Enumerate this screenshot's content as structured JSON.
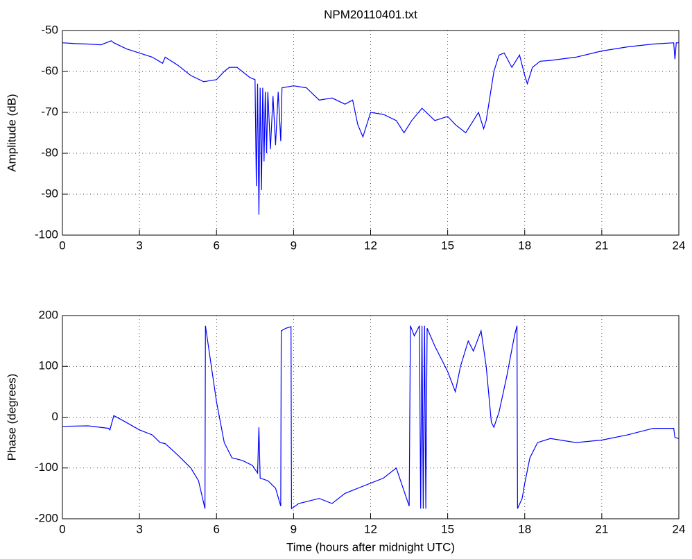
{
  "chart_data": [
    {
      "type": "line",
      "title": "NPM20110401.txt",
      "ylabel": "Amplitude (dB)",
      "color": "#0000ff",
      "grid": true,
      "x": [
        0,
        0.5,
        1,
        1.5,
        1.9,
        2,
        2.5,
        3,
        3.5,
        3.9,
        4,
        4.5,
        5,
        5.5,
        6,
        6.3,
        6.5,
        6.8,
        7,
        7.3,
        7.5,
        7.55,
        7.6,
        7.65,
        7.7,
        7.75,
        7.8,
        7.85,
        7.9,
        7.95,
        8,
        8.1,
        8.2,
        8.3,
        8.4,
        8.5,
        8.55,
        9,
        9.5,
        10,
        10.5,
        11,
        11.3,
        11.5,
        11.7,
        12,
        12.5,
        13,
        13.3,
        13.6,
        14,
        14.5,
        15,
        15.3,
        15.7,
        16,
        16.2,
        16.4,
        16.5,
        16.8,
        17,
        17.2,
        17.5,
        17.8,
        18,
        18.1,
        18.3,
        18.6,
        19,
        20,
        21,
        22,
        23,
        23.8,
        23.85,
        23.9,
        24
      ],
      "values": [
        -53,
        -53.2,
        -53.3,
        -53.5,
        -52.5,
        -53,
        -54.5,
        -55.5,
        -56.5,
        -58,
        -56.5,
        -58.5,
        -61,
        -62.5,
        -62,
        -60,
        -59,
        -59,
        -60,
        -61.5,
        -62,
        -88,
        -63,
        -95,
        -64,
        -89,
        -64,
        -82,
        -65,
        -80,
        -65,
        -79,
        -66,
        -78,
        -65,
        -77,
        -64,
        -63.5,
        -64,
        -67,
        -66.5,
        -68,
        -67,
        -73,
        -76,
        -70,
        -70.5,
        -72,
        -75,
        -72,
        -69,
        -72,
        -71,
        -73,
        -75,
        -72,
        -70,
        -74,
        -72,
        -60,
        -56,
        -55.5,
        -59,
        -56,
        -61,
        -63,
        -59,
        -57.5,
        -57.3,
        -56.5,
        -55,
        -54,
        -53.3,
        -53,
        -57,
        -53,
        -53
      ],
      "xlim": [
        0,
        24
      ],
      "xticks": [
        0,
        3,
        6,
        9,
        12,
        15,
        18,
        21,
        24
      ],
      "ylim": [
        -100,
        -50
      ],
      "yticks": [
        -100,
        -90,
        -80,
        -70,
        -60,
        -50
      ]
    },
    {
      "type": "line",
      "xlabel": "Time (hours after midnight UTC)",
      "ylabel": "Phase (degrees)",
      "color": "#0000ff",
      "grid": true,
      "x": [
        0,
        1,
        1.8,
        1.85,
        2,
        2.3,
        3,
        3.5,
        3.8,
        4,
        4.5,
        5,
        5.3,
        5.55,
        5.57,
        5.8,
        6,
        6.3,
        6.6,
        7,
        7.4,
        7.6,
        7.65,
        7.7,
        8,
        8.3,
        8.5,
        8.52,
        8.7,
        8.9,
        8.92,
        9.2,
        10,
        10.5,
        11,
        11.5,
        12,
        12.5,
        13,
        13.2,
        13.5,
        13.55,
        13.7,
        13.9,
        13.95,
        14,
        14.05,
        14.1,
        14.15,
        14.2,
        14.5,
        14.8,
        15,
        15.3,
        15.5,
        15.8,
        16,
        16.3,
        16.5,
        16.7,
        16.8,
        17,
        17.3,
        17.6,
        17.7,
        17.72,
        17.9,
        18,
        18.2,
        18.5,
        19,
        20,
        21,
        22,
        23,
        23.8,
        23.85,
        24
      ],
      "values": [
        -18,
        -17,
        -22,
        -25,
        3,
        -5,
        -25,
        -35,
        -50,
        -52,
        -75,
        -100,
        -125,
        -180,
        180,
        100,
        30,
        -50,
        -80,
        -85,
        -95,
        -110,
        -20,
        -120,
        -125,
        -140,
        -175,
        170,
        175,
        178,
        -180,
        -170,
        -160,
        -170,
        -150,
        -140,
        -130,
        -120,
        -100,
        -130,
        -175,
        180,
        160,
        180,
        -180,
        180,
        -180,
        180,
        -180,
        175,
        140,
        110,
        90,
        50,
        100,
        150,
        130,
        170,
        100,
        -10,
        -20,
        10,
        80,
        160,
        180,
        -180,
        -160,
        -130,
        -80,
        -50,
        -42,
        -50,
        -45,
        -35,
        -22,
        -22,
        -40,
        -42
      ],
      "xlim": [
        0,
        24
      ],
      "xticks": [
        0,
        3,
        6,
        9,
        12,
        15,
        18,
        21,
        24
      ],
      "ylim": [
        -200,
        200
      ],
      "yticks": [
        -200,
        -100,
        0,
        100,
        200
      ]
    }
  ]
}
